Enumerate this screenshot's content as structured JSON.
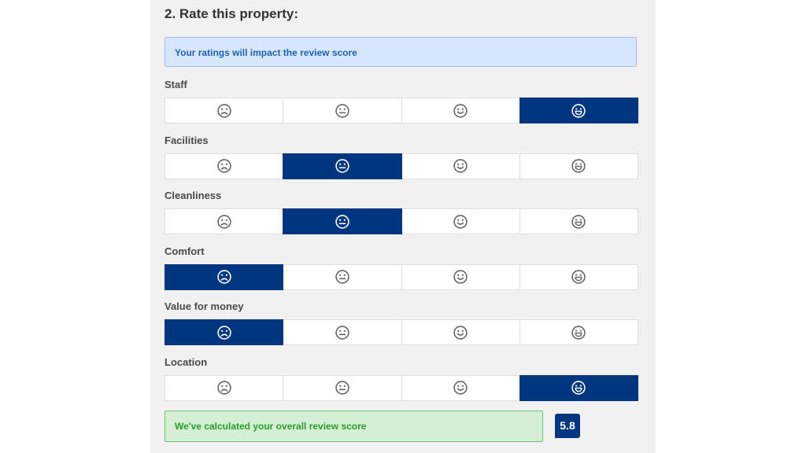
{
  "section": {
    "title": "2. Rate this property:",
    "info": "Your ratings will impact the review score"
  },
  "rating_scale": [
    "sad-face-icon",
    "neutral-face-icon",
    "smile-face-icon",
    "big-smile-face-icon"
  ],
  "categories": [
    {
      "label": "Staff",
      "selected_index": 3
    },
    {
      "label": "Facilities",
      "selected_index": 1
    },
    {
      "label": "Cleanliness",
      "selected_index": 1
    },
    {
      "label": "Comfort",
      "selected_index": 0
    },
    {
      "label": "Value for money",
      "selected_index": 0
    },
    {
      "label": "Location",
      "selected_index": 3
    }
  ],
  "result": {
    "message": "We've calculated your overall review score",
    "score": "5.8"
  },
  "colors": {
    "selected": "#003580",
    "info_bg": "#d6e6fb",
    "info_text": "#1f63b0",
    "success_bg": "#d4efd4",
    "success_text": "#2a9d2a",
    "panel_bg": "#f1f1f1"
  }
}
